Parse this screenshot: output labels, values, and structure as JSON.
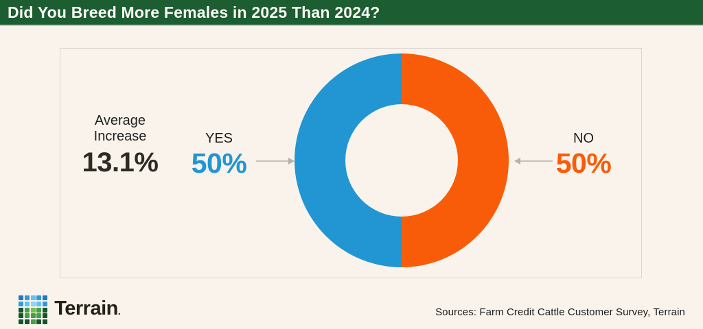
{
  "header": {
    "title": "Did You Breed More Females in 2025 Than 2024?"
  },
  "chart_data": {
    "type": "pie",
    "subtype": "donut",
    "title": "Did You Breed More Females in 2025 Than 2024?",
    "categories": [
      "YES",
      "NO"
    ],
    "values": [
      50,
      50
    ],
    "value_labels": [
      "50%",
      "50%"
    ],
    "unit": "%",
    "slice_colors": [
      "#2196d3",
      "#f95c08"
    ],
    "slice_order": "YES fills left half, NO fills right half, split vertically at 12 o'clock",
    "legend_position": "callout labels with arrows on left (YES) and right (NO)",
    "annotation": {
      "label": "Average Increase",
      "value": "13.1%"
    }
  },
  "panel": {
    "average_label": "Average Increase",
    "average_value": "13.1%"
  },
  "footer": {
    "brand": "Terrain",
    "brand_mark": ".",
    "sources": "Sources: Farm Credit Cattle Customer Survey, Terrain",
    "logo_grid": [
      [
        "#2178bd",
        "#2d9bd8",
        "#63c1ee",
        "#2d9bd8",
        "#2178bd"
      ],
      [
        "#2d9bd8",
        "#63c1ee",
        "#8fd3f4",
        "#63c1ee",
        "#2d9bd8"
      ],
      [
        "#17542b",
        "#3fa246",
        "#76c043",
        "#3fa246",
        "#17542b"
      ],
      [
        "#17542b",
        "#3fa246",
        "#3fa246",
        "#3fa246",
        "#17542b"
      ],
      [
        "#17542b",
        "#17542b",
        "#3fa246",
        "#17542b",
        "#17542b"
      ]
    ]
  },
  "colors": {
    "header_bg": "#1c5d31",
    "page_bg": "#f9f3ec",
    "panel_border": "#dcd6cf",
    "yes_blue": "#2196d3",
    "no_orange": "#f95c08",
    "arrow_gray": "#b5b1aa",
    "text_dark": "#1f1f1d"
  }
}
